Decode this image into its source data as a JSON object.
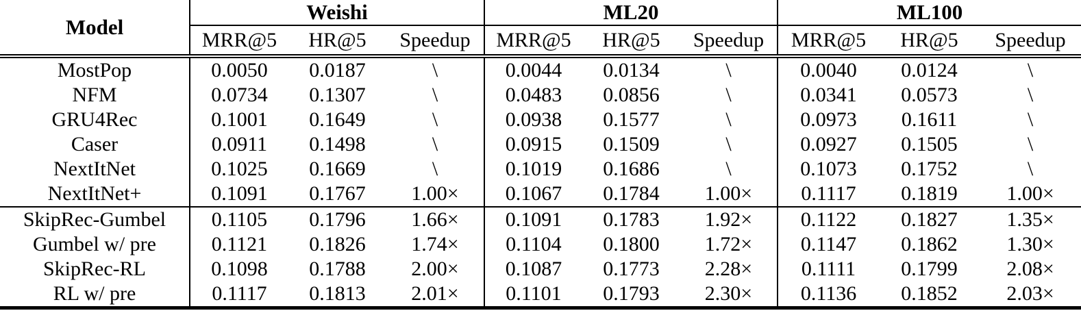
{
  "table": {
    "model_header": "Model",
    "groups": [
      {
        "name": "Weishi",
        "metrics": [
          "MRR@5",
          "HR@5",
          "Speedup"
        ]
      },
      {
        "name": "ML20",
        "metrics": [
          "MRR@5",
          "HR@5",
          "Speedup"
        ]
      },
      {
        "name": "ML100",
        "metrics": [
          "MRR@5",
          "HR@5",
          "Speedup"
        ]
      }
    ],
    "sections": [
      {
        "bold_models": false,
        "rows": [
          {
            "model": "MostPop",
            "values": [
              "0.0050",
              "0.0187",
              "\\",
              "0.0044",
              "0.0134",
              "\\",
              "0.0040",
              "0.0124",
              "\\"
            ],
            "bold_value_indices": []
          },
          {
            "model": "NFM",
            "values": [
              "0.0734",
              "0.1307",
              "\\",
              "0.0483",
              "0.0856",
              "\\",
              "0.0341",
              "0.0573",
              "\\"
            ],
            "bold_value_indices": []
          },
          {
            "model": "GRU4Rec",
            "values": [
              "0.1001",
              "0.1649",
              "\\",
              "0.0938",
              "0.1577",
              "\\",
              "0.0973",
              "0.1611",
              "\\"
            ],
            "bold_value_indices": []
          },
          {
            "model": "Caser",
            "values": [
              "0.0911",
              "0.1498",
              "\\",
              "0.0915",
              "0.1509",
              "\\",
              "0.0927",
              "0.1505",
              "\\"
            ],
            "bold_value_indices": []
          },
          {
            "model": "NextItNet",
            "values": [
              "0.1025",
              "0.1669",
              "\\",
              "0.1019",
              "0.1686",
              "\\",
              "0.1073",
              "0.1752",
              "\\"
            ],
            "bold_value_indices": []
          },
          {
            "model": "NextItNet+",
            "values": [
              "0.1091",
              "0.1767",
              "1.00×",
              "0.1067",
              "0.1784",
              "1.00×",
              "0.1117",
              "0.1819",
              "1.00×"
            ],
            "bold_value_indices": []
          }
        ]
      },
      {
        "bold_models": true,
        "rows": [
          {
            "model": "SkipRec-Gumbel",
            "values": [
              "0.1105",
              "0.1796",
              "1.66×",
              "0.1091",
              "0.1783",
              "1.92×",
              "0.1122",
              "0.1827",
              "1.35×"
            ],
            "bold_value_indices": []
          },
          {
            "model": "Gumbel w/ pre",
            "values": [
              "0.1121",
              "0.1826",
              "1.74×",
              "0.1104",
              "0.1800",
              "1.72×",
              "0.1147",
              "0.1862",
              "1.30×"
            ],
            "bold_value_indices": [
              0,
              1,
              3,
              4,
              6,
              7
            ]
          },
          {
            "model": "SkipRec-RL",
            "values": [
              "0.1098",
              "0.1788",
              "2.00×",
              "0.1087",
              "0.1773",
              "2.28×",
              "0.1111",
              "0.1799",
              "2.08×"
            ],
            "bold_value_indices": []
          },
          {
            "model": "RL w/ pre",
            "values": [
              "0.1117",
              "0.1813",
              "2.01×",
              "0.1101",
              "0.1793",
              "2.30×",
              "0.1136",
              "0.1852",
              "2.03×"
            ],
            "bold_value_indices": []
          }
        ]
      }
    ]
  }
}
